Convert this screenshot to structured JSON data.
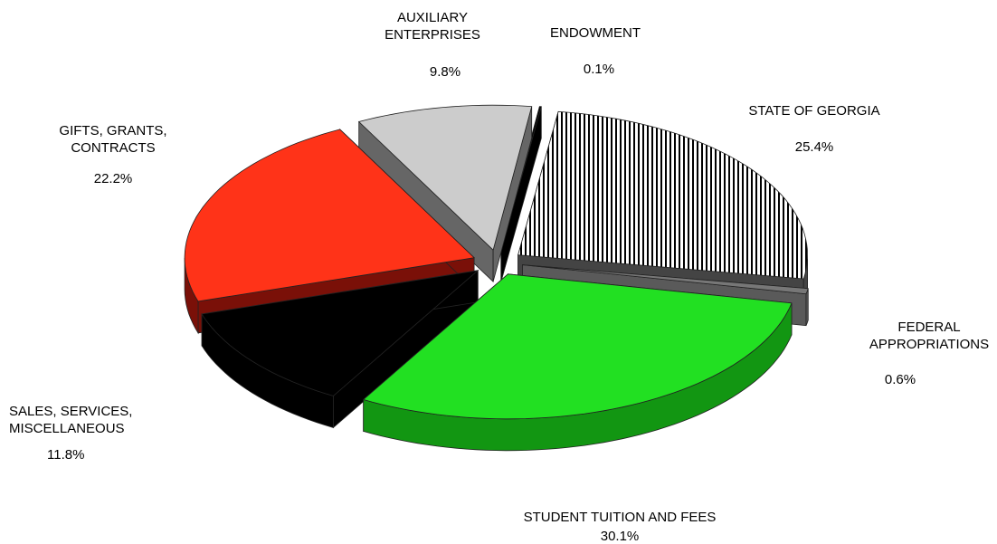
{
  "chart_data": {
    "type": "pie3d",
    "categories": [
      "STATE OF GEORGIA",
      "FEDERAL\nAPPROPRIATIONS",
      "STUDENT TUITION  AND FEES",
      "SALES, SERVICES,\nMISCELLANEOUS",
      "GIFTS, GRANTS,\nCONTRACTS",
      "AUXILIARY\nENTERPRISES",
      "ENDOWMENT"
    ],
    "values": [
      25.4,
      0.6,
      30.1,
      11.8,
      22.2,
      9.8,
      0.1
    ],
    "value_labels": [
      "25.4%",
      "0.6%",
      "30.1%",
      "11.8%",
      "22.2%",
      "9.8%",
      "0.1%"
    ],
    "colors": [
      "#ffffff",
      "#777777",
      "#22e022",
      "#000000",
      "#ff3318",
      "#cccccc",
      "#000000"
    ],
    "side_colors": [
      "#444444",
      "#5a5a5a",
      "#129612",
      "#000000",
      "#7a1008",
      "#666666",
      "#000000"
    ],
    "hatches": [
      "vertical",
      null,
      null,
      null,
      null,
      null,
      null
    ]
  }
}
